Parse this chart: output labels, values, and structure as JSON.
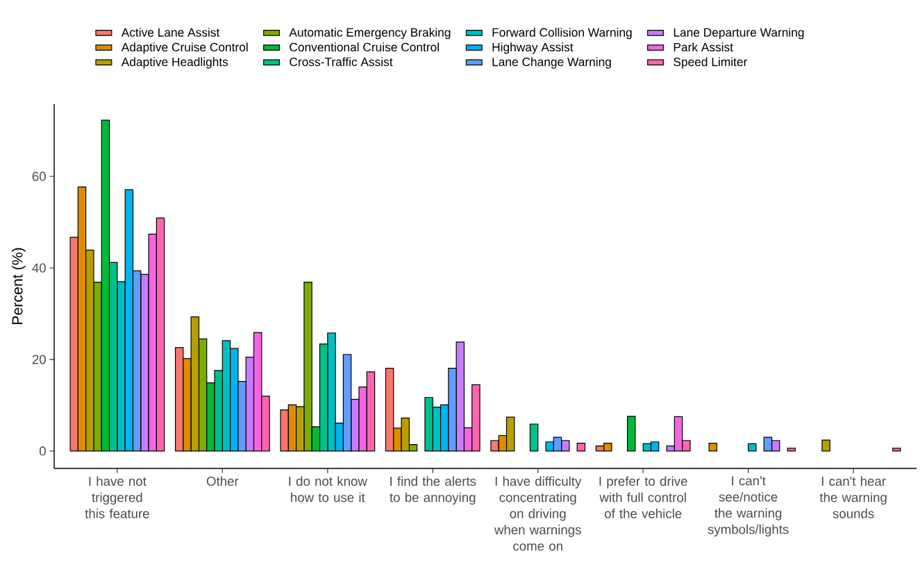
{
  "chart_data": {
    "type": "bar",
    "ylabel": "Percent (%)",
    "legend": "top",
    "categories": [
      "I have not triggered this feature",
      "Other",
      "I do not know how to use it",
      "I find the alerts to be annoying",
      "I have difficulty concentrating on driving when warnings come on",
      "I prefer to drive with full control of the vehicle",
      "I can't see/notice the warning symbols/lights",
      "I can't hear the warning sounds"
    ],
    "ylim": [
      -3.8,
      75.8
    ],
    "yticks": [
      0,
      20,
      40,
      60
    ],
    "series": [
      {
        "name": "Active Lane Assist",
        "color": "#f8766d",
        "values": [
          46.7,
          22.6,
          9.0,
          18.1,
          2.3,
          1.1,
          0,
          0
        ]
      },
      {
        "name": "Adaptive Cruise Control",
        "color": "#de8c00",
        "values": [
          57.7,
          20.2,
          10.1,
          5.0,
          3.4,
          1.7,
          1.7,
          0
        ]
      },
      {
        "name": "Adaptive Headlights",
        "color": "#b79f00",
        "values": [
          43.9,
          29.3,
          9.7,
          7.2,
          7.4,
          0,
          0,
          2.4
        ]
      },
      {
        "name": "Automatic Emergency Braking",
        "color": "#7cae00",
        "values": [
          36.9,
          24.5,
          36.9,
          1.4,
          0,
          0,
          0,
          0
        ]
      },
      {
        "name": "Conventional Cruise Control",
        "color": "#00ba38",
        "values": [
          72.3,
          14.9,
          5.3,
          0,
          0,
          7.6,
          0,
          0
        ]
      },
      {
        "name": "Cross-Traffic Assist",
        "color": "#00c08b",
        "values": [
          41.2,
          17.6,
          23.4,
          11.7,
          5.9,
          0,
          0,
          0
        ]
      },
      {
        "name": "Forward Collision Warning",
        "color": "#00bfc4",
        "values": [
          37.0,
          24.1,
          25.8,
          9.6,
          0,
          1.6,
          1.6,
          0
        ]
      },
      {
        "name": "Highway Assist",
        "color": "#00b4f0",
        "values": [
          57.1,
          22.4,
          6.1,
          10.1,
          2.0,
          2.0,
          0,
          0
        ]
      },
      {
        "name": "Lane Change Warning",
        "color": "#619cff",
        "values": [
          39.4,
          15.2,
          21.1,
          18.1,
          3.0,
          0,
          3.0,
          0
        ]
      },
      {
        "name": "Lane Departure Warning",
        "color": "#c77cff",
        "values": [
          38.6,
          20.5,
          11.3,
          23.8,
          2.3,
          1.1,
          2.3,
          0
        ]
      },
      {
        "name": "Park Assist",
        "color": "#f564e3",
        "values": [
          47.4,
          25.9,
          14.0,
          5.1,
          0,
          7.5,
          0,
          0
        ]
      },
      {
        "name": "Speed Limiter",
        "color": "#ff64b0",
        "values": [
          50.9,
          12.0,
          17.3,
          14.5,
          1.7,
          2.3,
          0.6,
          0.6
        ]
      }
    ]
  }
}
